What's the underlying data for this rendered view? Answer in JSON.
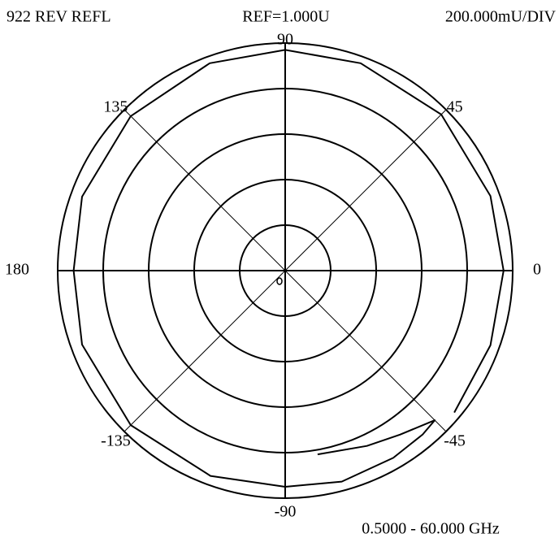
{
  "chart_data": {
    "type": "polar",
    "title": "922 REV REFL",
    "reference": "REF=1.000U",
    "scale": "200.000mU/DIV",
    "frequency_range": "0.5000 - 60.000 GHz",
    "rlim": [
      0,
      1
    ],
    "rticks": [
      0.2,
      0.4,
      0.6,
      0.8,
      1.0
    ],
    "thetaticks": [
      0,
      45,
      90,
      135,
      180,
      -135,
      -90,
      -45
    ],
    "color": "#000000",
    "series": [
      {
        "name": "REV REFL",
        "color": "#000000",
        "theta": [
          -40,
          -20,
          0,
          20,
          45,
          70,
          90,
          110,
          135,
          160,
          180,
          -160,
          -135,
          -110,
          -90,
          -75,
          -60,
          -50,
          -45,
          -55,
          -65,
          -80
        ],
        "values": [
          0.97,
          0.96,
          0.96,
          0.96,
          0.97,
          0.97,
          0.97,
          0.97,
          0.96,
          0.95,
          0.93,
          0.95,
          0.96,
          0.96,
          0.95,
          0.96,
          0.95,
          0.94,
          0.93,
          0.88,
          0.85,
          0.82
        ]
      }
    ]
  }
}
